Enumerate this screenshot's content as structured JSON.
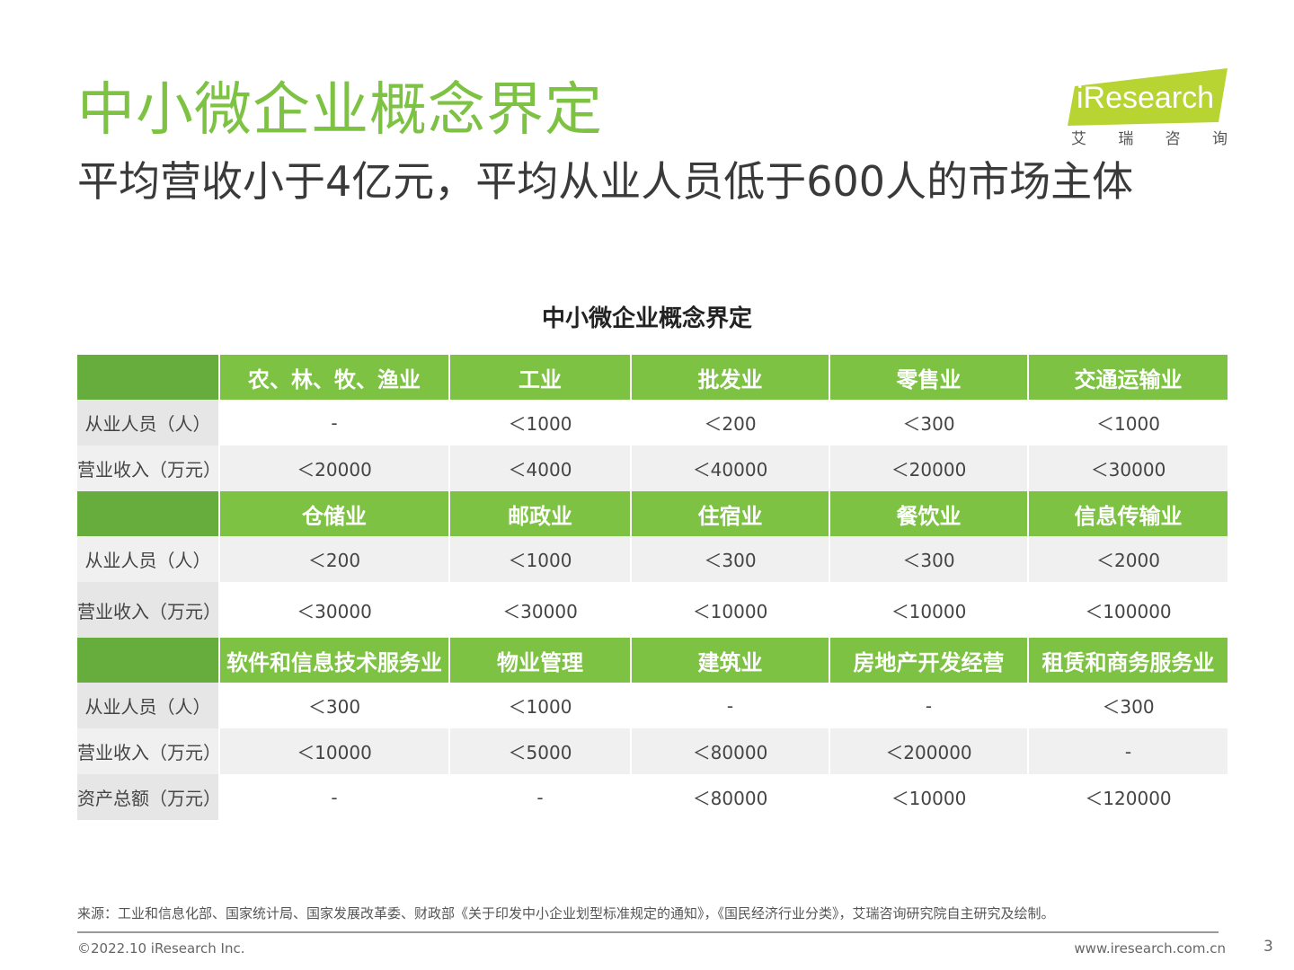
{
  "header": {
    "title": "中小微企业概念界定",
    "subtitle": "平均营收小于4亿元，平均从业人员低于600人的市场主体"
  },
  "logo": {
    "brand": "iResearch",
    "cn_chars": [
      "艾",
      "瑞",
      "咨",
      "询"
    ]
  },
  "table": {
    "title": "中小微企业概念界定",
    "sections": [
      {
        "headers": [
          "农、林、牧、渔业",
          "工业",
          "批发业",
          "零售业",
          "交通运输业"
        ],
        "rows": [
          {
            "label": "从业人员（人）",
            "values": [
              "-",
              "＜1000",
              "＜200",
              "＜300",
              "＜1000"
            ],
            "shade": false
          },
          {
            "label": "营业收入（万元）",
            "values": [
              "＜20000",
              "＜4000",
              "＜40000",
              "＜20000",
              "＜30000"
            ],
            "shade": true
          }
        ]
      },
      {
        "headers": [
          "仓储业",
          "邮政业",
          "住宿业",
          "餐饮业",
          "信息传输业"
        ],
        "rows": [
          {
            "label": "从业人员（人）",
            "values": [
              "＜200",
              "＜1000",
              "＜300",
              "＜300",
              "＜2000"
            ],
            "shade": true
          },
          {
            "label": "营业收入（万元）",
            "values": [
              "＜30000",
              "＜30000",
              "＜10000",
              "＜10000",
              "＜100000"
            ],
            "shade": false,
            "tall": true
          }
        ]
      },
      {
        "headers": [
          "软件和信息技术服务业",
          "物业管理",
          "建筑业",
          "房地产开发经营",
          "租赁和商务服务业"
        ],
        "rows": [
          {
            "label": "从业人员（人）",
            "values": [
              "＜300",
              "＜1000",
              "-",
              "-",
              "＜300"
            ],
            "shade": false
          },
          {
            "label": "营业收入（万元）",
            "values": [
              "＜10000",
              "＜5000",
              "＜80000",
              "＜200000",
              "-"
            ],
            "shade": true
          },
          {
            "label": "资产总额（万元）",
            "values": [
              "-",
              "-",
              "＜80000",
              "＜10000",
              "＜120000"
            ],
            "shade": false
          }
        ]
      }
    ]
  },
  "footer": {
    "source": "来源：工业和信息化部、国家统计局、国家发展改革委、财政部《关于印发中小企业划型标准规定的通知》，《国民经济行业分类》，艾瑞咨询研究院自主研究及绘制。",
    "copyright": "©2022.10 iResearch Inc.",
    "website": "www.iresearch.com.cn",
    "page": "3"
  },
  "colors": {
    "accent": "#7dc242",
    "accent_dark": "#67ad3d",
    "row_shade": "#f0f0f0",
    "label_bg": "#e6e6e6"
  }
}
